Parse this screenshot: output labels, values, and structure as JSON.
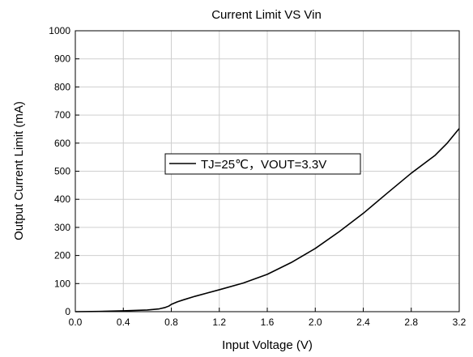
{
  "chart_data": {
    "type": "line",
    "title": "Current Limit VS Vin",
    "xlabel": "Input Voltage (V)",
    "ylabel": "Output Current Limit (mA)",
    "xlim": [
      0.0,
      3.2
    ],
    "ylim": [
      0,
      1000
    ],
    "x_ticks": [
      "0.0",
      "0.4",
      "0.8",
      "1.2",
      "1.6",
      "2.0",
      "2.4",
      "2.8",
      "3.2"
    ],
    "y_ticks": [
      "0",
      "100",
      "200",
      "300",
      "400",
      "500",
      "600",
      "700",
      "800",
      "900",
      "1000"
    ],
    "grid": true,
    "legend_position": "center-left",
    "series": [
      {
        "name": "TJ=25℃，VOUT=3.3V",
        "color": "#000000",
        "x": [
          0.0,
          0.2,
          0.4,
          0.6,
          0.7,
          0.75,
          0.78,
          0.8,
          0.85,
          0.9,
          1.0,
          1.2,
          1.4,
          1.6,
          1.8,
          2.0,
          2.2,
          2.4,
          2.6,
          2.8,
          3.0,
          3.1,
          3.2
        ],
        "y": [
          0,
          1,
          3,
          6,
          10,
          15,
          20,
          26,
          35,
          42,
          55,
          78,
          102,
          133,
          175,
          225,
          285,
          350,
          422,
          493,
          557,
          600,
          652
        ]
      }
    ]
  }
}
